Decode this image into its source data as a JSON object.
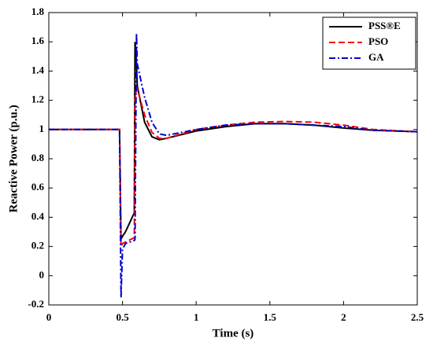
{
  "chart_data": {
    "type": "line",
    "xlabel": "Time (s)",
    "ylabel": "Reactive Power  (p.u.)",
    "x": [
      0,
      0.48,
      0.49,
      0.5,
      0.52,
      0.58,
      0.585,
      0.595,
      0.6,
      0.65,
      0.7,
      0.75,
      0.8,
      1.0,
      1.2,
      1.4,
      1.6,
      1.8,
      2.0,
      2.2,
      2.5
    ],
    "series": [
      {
        "name": "PSS®E",
        "color": "#000000",
        "linestyle": "solid",
        "values": [
          1,
          1,
          0.25,
          0.27,
          0.3,
          0.43,
          1.6,
          1.45,
          1.3,
          1.05,
          0.95,
          0.93,
          0.94,
          0.99,
          1.02,
          1.04,
          1.04,
          1.03,
          1.01,
          0.995,
          0.985
        ]
      },
      {
        "name": "PSO",
        "color": "#ff0000",
        "linestyle": "dashed",
        "values": [
          1,
          1,
          0.2,
          0.22,
          0.23,
          0.26,
          1.2,
          1.27,
          1.28,
          1.1,
          0.98,
          0.94,
          0.94,
          1.0,
          1.03,
          1.05,
          1.055,
          1.05,
          1.03,
          1.0,
          0.985
        ]
      },
      {
        "name": "GA",
        "color": "#0000cc",
        "linestyle": "dashdot",
        "values": [
          1,
          1,
          -0.15,
          0.18,
          0.22,
          0.24,
          0.25,
          1.66,
          1.45,
          1.22,
          1.05,
          0.97,
          0.96,
          1.0,
          1.03,
          1.04,
          1.04,
          1.03,
          1.02,
          0.995,
          0.985
        ]
      }
    ],
    "xlim": [
      0,
      2.5
    ],
    "xticks": [
      0,
      0.5,
      1,
      1.5,
      2,
      2.5
    ],
    "ylim": [
      -0.2,
      1.8
    ],
    "yticks": [
      -0.2,
      0,
      0.2,
      0.4,
      0.6,
      0.8,
      1,
      1.2,
      1.4,
      1.6,
      1.8
    ],
    "grid": false,
    "legend": "upper right"
  }
}
